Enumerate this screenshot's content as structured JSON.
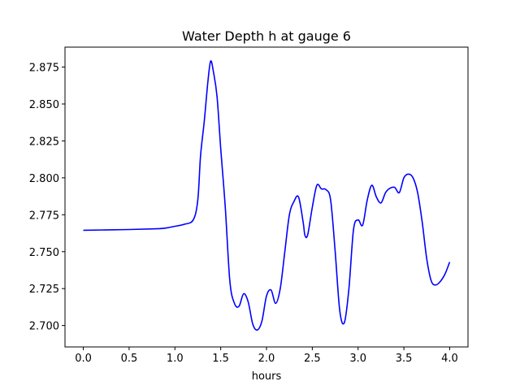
{
  "chart_data": {
    "type": "line",
    "title": "Water Depth h at gauge 6",
    "xlabel": "hours",
    "ylabel": "",
    "xlim": [
      -0.2,
      4.2
    ],
    "ylim": [
      2.6855,
      2.8885
    ],
    "xticks": [
      0.0,
      0.5,
      1.0,
      1.5,
      2.0,
      2.5,
      3.0,
      3.5,
      4.0
    ],
    "xtick_labels": [
      "0.0",
      "0.5",
      "1.0",
      "1.5",
      "2.0",
      "2.5",
      "3.0",
      "3.5",
      "4.0"
    ],
    "yticks": [
      2.7,
      2.725,
      2.75,
      2.775,
      2.8,
      2.825,
      2.85,
      2.875
    ],
    "ytick_labels": [
      "2.700",
      "2.725",
      "2.750",
      "2.775",
      "2.800",
      "2.825",
      "2.850",
      "2.875"
    ],
    "grid": false,
    "series": [
      {
        "color": "#0000ff",
        "x": [
          0.0,
          0.5,
          0.8,
          0.9,
          1.0,
          1.1,
          1.2,
          1.25,
          1.28,
          1.32,
          1.36,
          1.39,
          1.42,
          1.46,
          1.5,
          1.55,
          1.6,
          1.65,
          1.7,
          1.75,
          1.8,
          1.85,
          1.9,
          1.95,
          2.0,
          2.05,
          2.1,
          2.15,
          2.2,
          2.25,
          2.3,
          2.35,
          2.4,
          2.42,
          2.45,
          2.5,
          2.55,
          2.6,
          2.65,
          2.7,
          2.75,
          2.8,
          2.85,
          2.9,
          2.95,
          3.0,
          3.05,
          3.1,
          3.15,
          3.2,
          3.25,
          3.3,
          3.35,
          3.4,
          3.45,
          3.5,
          3.55,
          3.6,
          3.65,
          3.7,
          3.75,
          3.8,
          3.85,
          3.9,
          3.95,
          4.0
        ],
        "y": [
          2.7645,
          2.765,
          2.7655,
          2.766,
          2.7672,
          2.7685,
          2.7715,
          2.785,
          2.815,
          2.838,
          2.865,
          2.879,
          2.872,
          2.855,
          2.82,
          2.78,
          2.73,
          2.715,
          2.713,
          2.7215,
          2.716,
          2.701,
          2.697,
          2.703,
          2.72,
          2.724,
          2.715,
          2.725,
          2.75,
          2.775,
          2.784,
          2.787,
          2.77,
          2.761,
          2.7615,
          2.78,
          2.795,
          2.7925,
          2.792,
          2.785,
          2.75,
          2.71,
          2.702,
          2.725,
          2.765,
          2.7715,
          2.768,
          2.785,
          2.795,
          2.787,
          2.783,
          2.79,
          2.793,
          2.7935,
          2.79,
          2.8,
          2.8025,
          2.8,
          2.79,
          2.77,
          2.745,
          2.73,
          2.7275,
          2.73,
          2.735,
          2.743
        ]
      }
    ]
  }
}
